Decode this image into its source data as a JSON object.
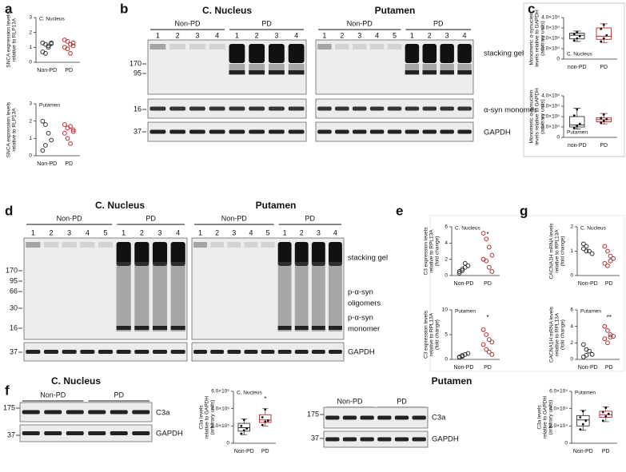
{
  "figure": {
    "a": {
      "label": "a",
      "plots": [
        {
          "type": "scatter",
          "title": "C. Nucleus",
          "y_label": [
            "SNCA expression levels",
            "relative to RLP13A"
          ],
          "categories": [
            "Non-PD",
            "PD"
          ],
          "groups": [
            {
              "color": "#333333",
              "values": [
                1.3,
                1.2,
                1.0,
                1.25,
                0.7,
                0.6,
                1.1,
                1.3
              ]
            },
            {
              "color": "#b03030",
              "values": [
                1.5,
                1.4,
                1.2,
                1.1,
                1.0,
                0.9,
                0.6,
                1.3
              ]
            }
          ],
          "ylim": [
            0,
            3
          ],
          "yticks": [
            0,
            1,
            2,
            3
          ]
        },
        {
          "type": "scatter",
          "title": "Putamen",
          "y_label": [
            "SNCA expression levels",
            "relative to RLP13A"
          ],
          "categories": [
            "Non-PD",
            "PD"
          ],
          "groups": [
            {
              "color": "#333333",
              "values": [
                2.0,
                1.8,
                1.3,
                0.9,
                0.3,
                0.6
              ]
            },
            {
              "color": "#b03030",
              "values": [
                1.8,
                1.6,
                1.7,
                1.4,
                1.3,
                1.0,
                0.7,
                1.5
              ]
            }
          ],
          "ylim": [
            0,
            3
          ],
          "yticks": [
            0,
            1,
            2,
            3
          ]
        }
      ]
    },
    "b": {
      "label": "b",
      "blots": [
        {
          "title": "C. Nucleus",
          "groups": [
            {
              "name": "Non-PD",
              "lanes": [
                "1",
                "2",
                "3",
                "4"
              ]
            },
            {
              "name": "PD",
              "lanes": [
                "1",
                "2",
                "3",
                "4"
              ]
            }
          ],
          "markers": [
            "170",
            "95",
            "16",
            "37"
          ]
        },
        {
          "title": "Putamen",
          "groups": [
            {
              "name": "Non-PD",
              "lanes": [
                "1",
                "2",
                "3",
                "4",
                "5"
              ]
            },
            {
              "name": "PD",
              "lanes": [
                "1",
                "2",
                "3",
                "4"
              ]
            }
          ],
          "labels": [
            "stacking gel",
            "α-syn monomer",
            "GAPDH"
          ]
        }
      ]
    },
    "c": {
      "label": "c",
      "plots": [
        {
          "type": "box",
          "title": "C. Nucleus",
          "y_label": [
            "Monomeric α-synuclein",
            "levels relative to GAPDH",
            "(arbitrary units)"
          ],
          "categories": [
            "non-PD",
            "PD"
          ],
          "boxes": [
            {
              "color": "#333333",
              "min": 170000,
              "q1": 195000,
              "median": 230000,
              "q3": 250000,
              "max": 270000,
              "points": [
                180000,
                200000,
                220000,
                240000,
                260000
              ]
            },
            {
              "color": "#b03030",
              "min": 160000,
              "q1": 190000,
              "median": 220000,
              "q3": 300000,
              "max": 340000,
              "points": [
                170000,
                200000,
                230000,
                290000,
                330000
              ]
            }
          ],
          "ylim": [
            0,
            400000
          ],
          "yticks": [
            0,
            {
              "value": 100000,
              "label": "1.0×10⁵"
            },
            {
              "value": 200000,
              "label": "2.0×10⁵"
            },
            {
              "value": 300000,
              "label": "3.0×10⁵"
            },
            {
              "value": 400000,
              "label": "4.0×10⁵"
            }
          ]
        },
        {
          "type": "box",
          "title": "Putamen",
          "y_label": [
            "Monomeric α-synuclein",
            "levels relative to GAPDH",
            "(arbitrary units)"
          ],
          "categories": [
            "non-PD",
            "PD"
          ],
          "boxes": [
            {
              "color": "#333333",
              "min": 80000,
              "q1": 100000,
              "median": 120000,
              "q3": 200000,
              "max": 280000,
              "points": [
                90000,
                110000,
                130000,
                210000,
                270000
              ]
            },
            {
              "color": "#b03030",
              "min": 130000,
              "q1": 150000,
              "median": 170000,
              "q3": 190000,
              "max": 230000,
              "points": [
                140000,
                160000,
                175000,
                185000,
                220000
              ]
            }
          ],
          "ylim": [
            0,
            400000
          ],
          "yticks": [
            0,
            {
              "value": 100000,
              "label": "1.0×10⁵"
            },
            {
              "value": 200000,
              "label": "2.0×10⁵"
            },
            {
              "value": 300000,
              "label": "3.0×10⁵"
            },
            {
              "value": 400000,
              "label": "4.0×10⁵"
            }
          ]
        }
      ]
    },
    "d": {
      "label": "d",
      "blots": [
        {
          "title": "C. Nucleus",
          "groups": [
            {
              "name": "Non-PD",
              "lanes": [
                "1",
                "2",
                "3",
                "4",
                "5"
              ]
            },
            {
              "name": "PD",
              "lanes": [
                "1",
                "2",
                "3",
                "4"
              ]
            }
          ],
          "markers": [
            "170",
            "95",
            "66",
            "30",
            "16",
            "37"
          ]
        },
        {
          "title": "Putamen",
          "groups": [
            {
              "name": "Non-PD",
              "lanes": [
                "1",
                "2",
                "3",
                "4",
                "5"
              ]
            },
            {
              "name": "PD",
              "lanes": [
                "1",
                "2",
                "3",
                "4"
              ]
            }
          ],
          "labels": [
            "stacking gel",
            "p-α-syn",
            "oligomers",
            "p-α-syn",
            "monomer",
            "GAPDH"
          ]
        }
      ]
    },
    "e": {
      "label": "e",
      "plots": [
        {
          "type": "scatter",
          "title": "C. Nucleus",
          "y_label": [
            "C3 expression levels",
            "relative to RPL13A",
            "(fold change)"
          ],
          "categories": [
            "Non-PD",
            "PD"
          ],
          "annotation": "*",
          "groups": [
            {
              "color": "#333333",
              "values": [
                0.5,
                0.8,
                1.0,
                1.2,
                0.3,
                0.6,
                1.5
              ]
            },
            {
              "color": "#b03030",
              "values": [
                5.2,
                4.5,
                3.5,
                2.5,
                2.0,
                1.8,
                1.0,
                0.5
              ]
            }
          ],
          "ylim": [
            0,
            6
          ],
          "yticks": [
            0,
            2,
            4,
            6
          ]
        },
        {
          "type": "scatter",
          "title": "Putamen",
          "y_label": [
            "C3 expression levels",
            "relative to RPL13A",
            "(fold change)"
          ],
          "categories": [
            "Non-PD",
            "PD"
          ],
          "annotation": "*",
          "groups": [
            {
              "color": "#333333",
              "values": [
                0.5,
                0.8,
                1.0,
                1.2,
                0.4,
                0.6
              ]
            },
            {
              "color": "#b03030",
              "values": [
                6,
                5,
                4,
                3.5,
                3,
                2,
                1.5,
                1
              ]
            }
          ],
          "ylim": [
            0,
            10
          ],
          "yticks": [
            0,
            5,
            10
          ]
        }
      ]
    },
    "g": {
      "label": "g",
      "plots": [
        {
          "type": "scatter",
          "title": "C. Nucleus",
          "y_label": [
            "CACNA1H mRNA levels",
            "relative to RPL13A",
            "(fold change)"
          ],
          "categories": [
            "Non-PD",
            "PD"
          ],
          "groups": [
            {
              "color": "#333333",
              "values": [
                1.3,
                1.2,
                1.0,
                0.9,
                1.1,
                1.0
              ]
            },
            {
              "color": "#b03030",
              "values": [
                1.2,
                1.0,
                0.8,
                0.7,
                0.5,
                0.4,
                0.6
              ]
            }
          ],
          "ylim": [
            0,
            2
          ],
          "yticks": [
            0,
            1,
            2
          ]
        },
        {
          "type": "scatter",
          "title": "Putamen",
          "y_label": [
            "CACNA1H mRNA levels",
            "relative to RPL13A",
            "(fold change)"
          ],
          "categories": [
            "Non-PD",
            "PD"
          ],
          "annotation": "**",
          "groups": [
            {
              "color": "#333333",
              "values": [
                1.8,
                1.2,
                1.0,
                0.6,
                0.3,
                0.5
              ]
            },
            {
              "color": "#b03030",
              "values": [
                4.0,
                3.5,
                3.0,
                2.8,
                2.5,
                2.0,
                2.7
              ]
            }
          ],
          "ylim": [
            0,
            6
          ],
          "yticks": [
            0,
            2,
            4,
            6
          ]
        }
      ]
    },
    "f": {
      "label": "f",
      "blots": [
        {
          "title": "C. Nucleus",
          "groups": [
            {
              "name": "Non-PD"
            },
            {
              "name": "PD"
            }
          ],
          "markers": [
            "175",
            "37"
          ],
          "labels": [
            "C3a",
            "GAPDH"
          ]
        },
        {
          "title": "Putamen",
          "groups": [
            {
              "name": "Non-PD"
            },
            {
              "name": "PD"
            }
          ],
          "markers": [
            "175",
            "37"
          ],
          "labels": [
            "C3a",
            "GAPDH"
          ]
        }
      ],
      "plots": [
        {
          "type": "box",
          "title": "C. Nucleus",
          "y_label": [
            "C3a levels",
            "relative to GAPDH",
            "(arbitrary units)"
          ],
          "categories": [
            "Non-PD",
            "PD"
          ],
          "annotation": "*",
          "boxes": [
            {
              "color": "#333333",
              "min": 100000,
              "q1": 140000,
              "median": 180000,
              "q3": 230000,
              "max": 280000,
              "points": [
                110000,
                150000,
                170000,
                200000,
                270000
              ]
            },
            {
              "color": "#b03030",
              "min": 200000,
              "q1": 240000,
              "median": 270000,
              "q3": 330000,
              "max": 400000,
              "points": [
                210000,
                250000,
                260000,
                300000,
                390000
              ]
            }
          ],
          "ylim": [
            0,
            600000
          ],
          "yticks": [
            0,
            {
              "value": 200000,
              "label": "2.0×10⁵"
            },
            {
              "value": 400000,
              "label": "4.0×10⁵"
            },
            {
              "value": 600000,
              "label": "6.0×10⁵"
            }
          ]
        },
        {
          "type": "box",
          "title": "Putamen",
          "y_label": [
            "C3a levels",
            "relative to GAPDH",
            "(arbitrary units)"
          ],
          "categories": [
            "Non-PD",
            "PD"
          ],
          "boxes": [
            {
              "color": "#333333",
              "min": 15000,
              "q1": 20000,
              "median": 27000,
              "q3": 32000,
              "max": 38000,
              "points": [
                16000,
                22000,
                26000,
                30000,
                37000
              ]
            },
            {
              "color": "#b03030",
              "min": 25000,
              "q1": 30000,
              "median": 33000,
              "q3": 37000,
              "max": 42000,
              "points": [
                26000,
                31000,
                34000,
                36000,
                41000
              ]
            }
          ],
          "ylim": [
            0,
            60000
          ],
          "yticks": [
            0,
            {
              "value": 20000,
              "label": "2.0×10⁴"
            },
            {
              "value": 40000,
              "label": "4.0×10⁴"
            },
            {
              "value": 60000,
              "label": "6.0×10⁴"
            }
          ]
        }
      ]
    }
  }
}
